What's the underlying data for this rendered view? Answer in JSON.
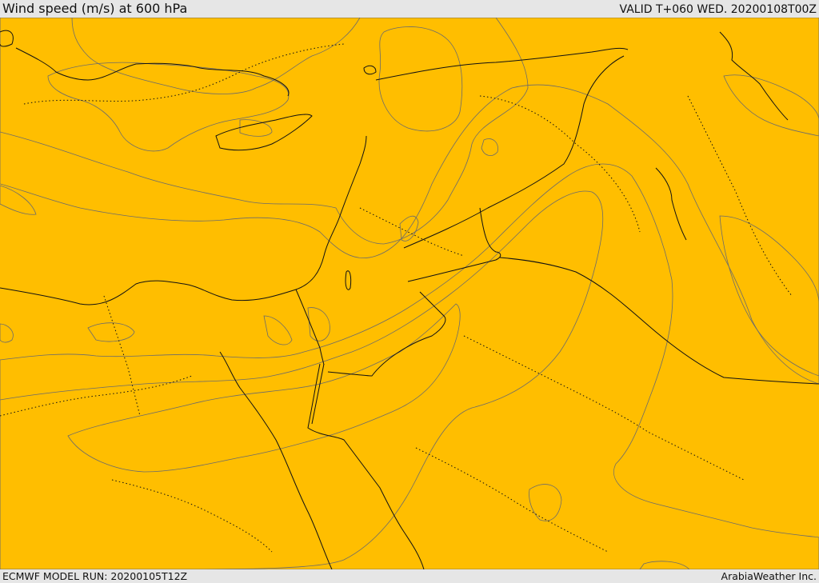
{
  "header": {
    "title": "Wind speed (m/s) at 600 hPa",
    "valid": "VALID T+060 WED. 20200108T00Z"
  },
  "footer": {
    "model_run": "ECMWF MODEL RUN: 20200105T12Z",
    "credit": "ArabiaWeather Inc."
  },
  "map": {
    "colors": {
      "lowest": "#ffffff",
      "band1": "#ffdca0",
      "band2": "#ffff00",
      "band3": "#ffdc00",
      "band4": "#ffbe00",
      "band5": "#ffa000",
      "band6": "#ff8200",
      "band7": "#ff5a00"
    }
  }
}
